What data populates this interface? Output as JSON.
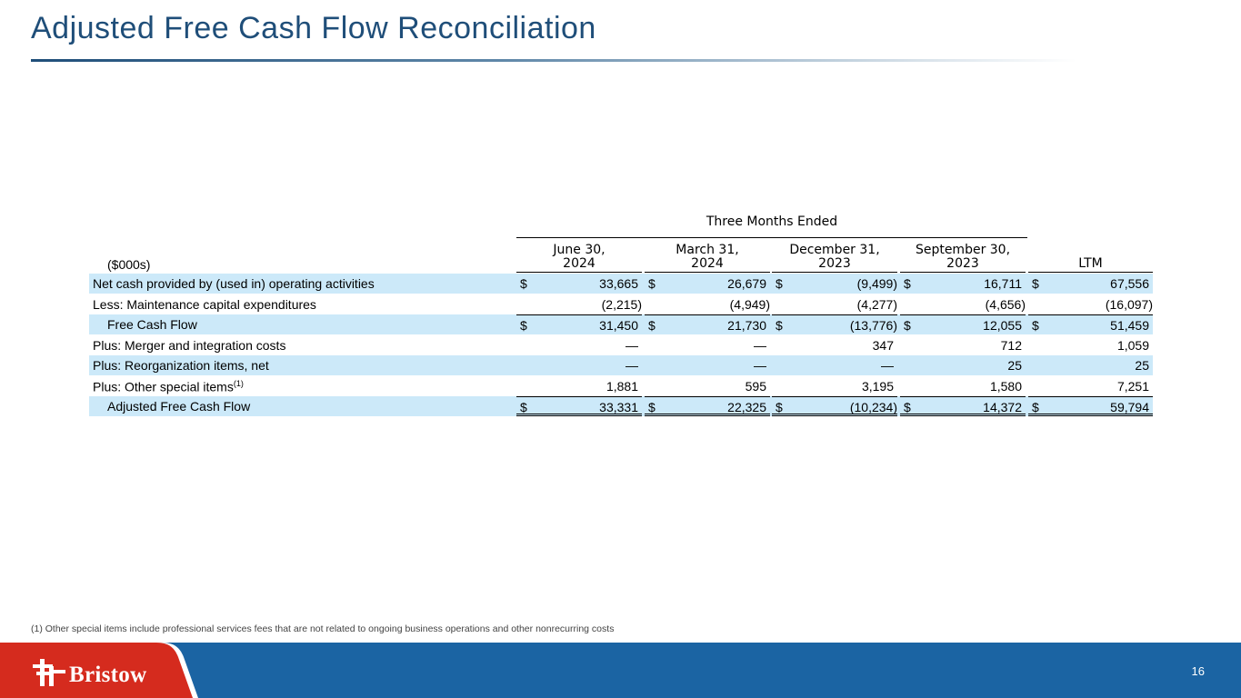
{
  "title": "Adjusted Free Cash Flow Reconciliation",
  "table": {
    "group_header": "Three Months Ended",
    "units": "($000s)",
    "columns": [
      {
        "line1": "June 30,",
        "line2": "2024"
      },
      {
        "line1": "March 31,",
        "line2": "2024"
      },
      {
        "line1": "December 31,",
        "line2": "2023"
      },
      {
        "line1": "September 30,",
        "line2": "2023"
      },
      {
        "line1": "LTM",
        "line2": ""
      }
    ],
    "rows": [
      {
        "label": "Net cash provided by (used in) operating activities",
        "values": [
          "33,665",
          "26,679",
          "(9,499)",
          "16,711",
          "67,556"
        ],
        "dollar": "$"
      },
      {
        "label": "Less: Maintenance capital expenditures",
        "values": [
          "(2,215)",
          "(4,949)",
          "(4,277)",
          "(4,656)",
          "(16,097)"
        ]
      },
      {
        "label": "Free Cash Flow",
        "values": [
          "31,450",
          "21,730",
          "(13,776)",
          "12,055",
          "51,459"
        ],
        "dollar": "$"
      },
      {
        "label": "Plus: Merger and integration costs",
        "values": [
          "—",
          "—",
          "347",
          "712",
          "1,059"
        ]
      },
      {
        "label": "Plus: Reorganization items, net",
        "values": [
          "—",
          "—",
          "—",
          "25",
          "25"
        ]
      },
      {
        "label": "Plus: Other special items",
        "sup": "(1)",
        "values": [
          "1,881",
          "595",
          "3,195",
          "1,580",
          "7,251"
        ]
      },
      {
        "label": "Adjusted Free Cash Flow",
        "values": [
          "33,331",
          "22,325",
          "(10,234)",
          "14,372",
          "59,794"
        ],
        "dollar": "$"
      }
    ]
  },
  "footnote": "(1) Other special items include professional services fees that are not related to ongoing business operations and other nonrecurring costs",
  "footer": {
    "brand": "Bristow",
    "page_number": "16",
    "brand_red": "#d52b1e",
    "bar_blue": "#1b64a3",
    "highlight": "#cce9f9"
  }
}
